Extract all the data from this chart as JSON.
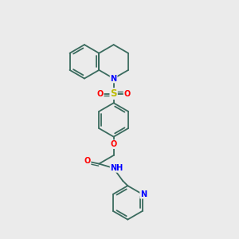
{
  "bg_color": "#ebebeb",
  "bond_color": "#3a6b5e",
  "bond_width": 1.3,
  "atom_colors": {
    "N": "#0000ff",
    "O": "#ff0000",
    "S": "#bbbb00",
    "C": "#3a6b5e"
  },
  "font_size": 7.0,
  "font_size_S": 8.5
}
